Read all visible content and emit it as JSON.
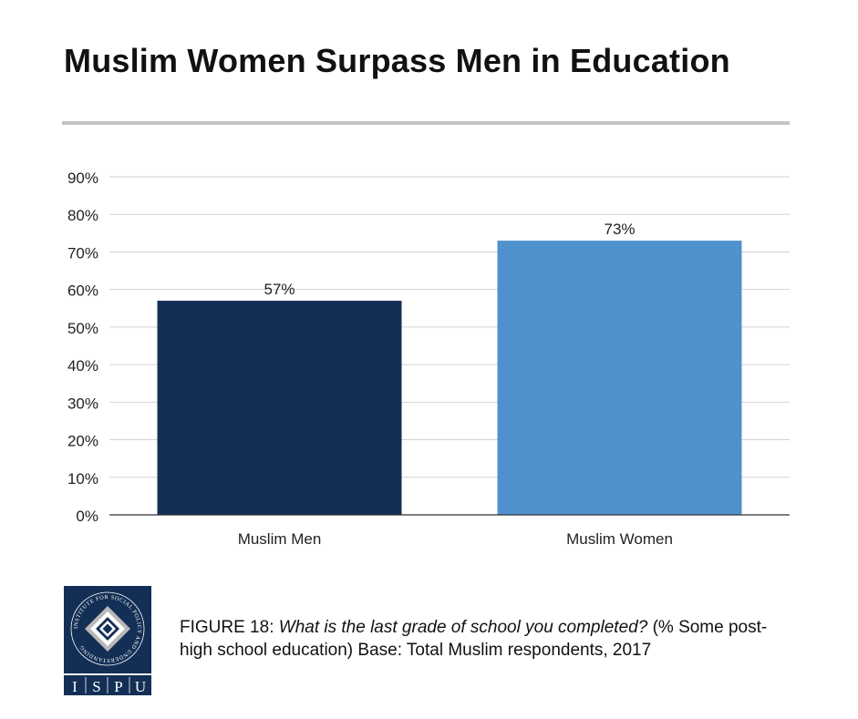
{
  "title": "Muslim Women Surpass Men in Education",
  "chart_data": {
    "type": "bar",
    "categories": [
      "Muslim Men",
      "Muslim Women"
    ],
    "values": [
      57,
      73
    ],
    "data_labels": [
      "57%",
      "73%"
    ],
    "yticks": [
      "0%",
      "10%",
      "20%",
      "30%",
      "40%",
      "50%",
      "60%",
      "70%",
      "80%",
      "90%"
    ],
    "ylim": [
      0,
      90
    ],
    "grid": true,
    "colors": [
      "#142f55",
      "#4f91cd"
    ]
  },
  "caption": {
    "label": "FIGURE 18",
    "question": "What is the last grade of school you completed?",
    "details": "(% Some post-high school education) Base: Total Muslim respondents, 2017"
  },
  "logo": {
    "ring_text": "INSTITUTE FOR SOCIAL POLICY AND UNDERSTANDING",
    "letters": [
      "I",
      "S",
      "P",
      "U"
    ],
    "colors": {
      "dark": "#142f55",
      "light": "#ffffff",
      "grey": "#b8b8b8"
    }
  }
}
